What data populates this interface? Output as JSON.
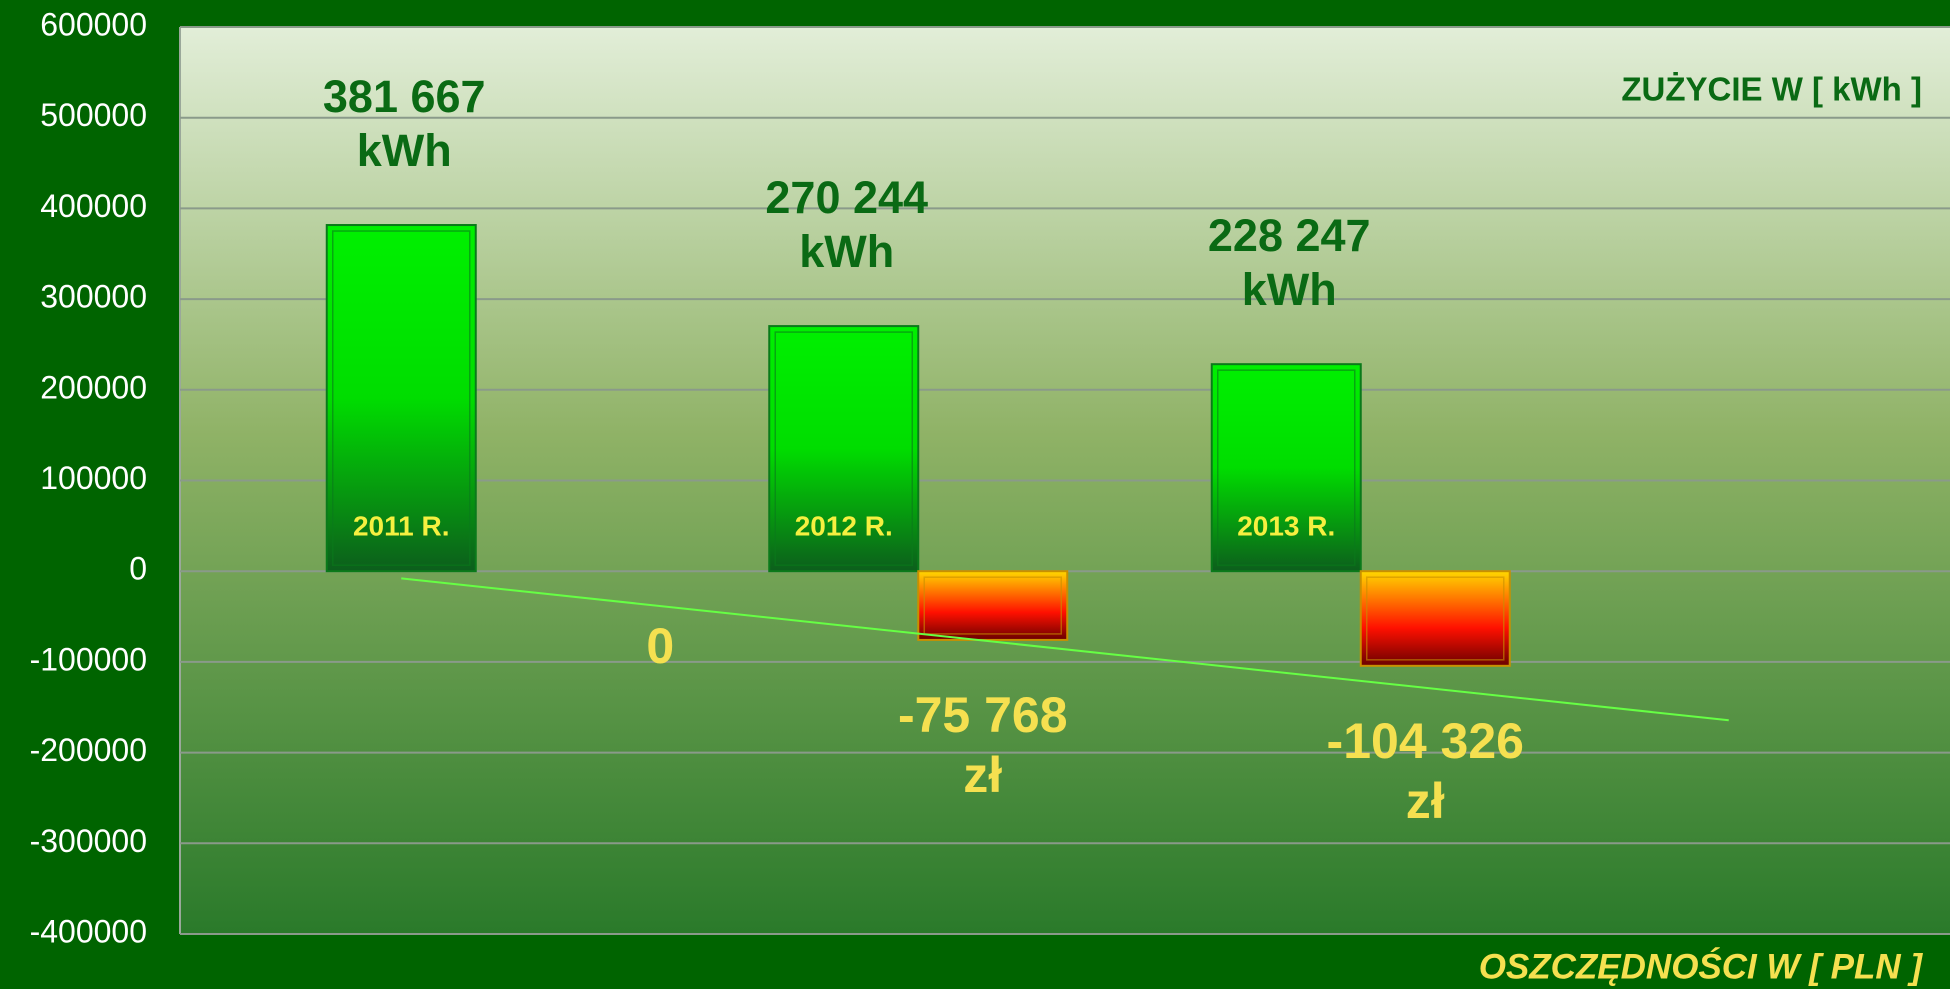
{
  "chart_data": {
    "type": "bar",
    "categories": [
      "2011 R.",
      "2012 R.",
      "2013 R."
    ],
    "series": [
      {
        "name": "ZUŻYCIE W [ kWh ]",
        "color": "#00ee00",
        "values": [
          381667,
          270244,
          228247
        ],
        "value_labels": [
          "381 667 kWh",
          "270 244 kWh",
          "228 247 kWh"
        ]
      },
      {
        "name": "OSZCZĘDNOŚCI  W [ PLN ]",
        "color": "#ff2000",
        "values": [
          0,
          -75768,
          -104326
        ],
        "value_labels": [
          "0",
          "-75 768 zł",
          "-104 326 zł"
        ],
        "trendline": "linear"
      }
    ],
    "ylim": [
      -400000,
      600000
    ],
    "yticks": [
      -400000,
      -300000,
      -200000,
      -100000,
      0,
      100000,
      200000,
      300000,
      400000,
      500000,
      600000
    ],
    "grid": true
  }
}
